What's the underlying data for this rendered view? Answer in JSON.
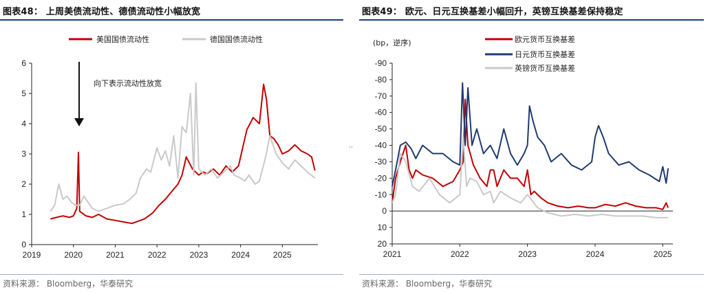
{
  "left": {
    "title": "图表48：  上周美债流动性、德债流动性小幅放宽",
    "source": "资料来源：  Bloomberg，华泰研究",
    "chart_data": {
      "type": "line",
      "title": "上周美债流动性、德债流动性小幅放宽",
      "xlabel": "",
      "ylabel": "",
      "ylim": [
        0,
        6
      ],
      "yticks": [
        "0",
        "1",
        "2",
        "3",
        "4",
        "5",
        "6"
      ],
      "xticks": [
        "2019",
        "2020",
        "2021",
        "2022",
        "2023",
        "2024",
        "2025"
      ],
      "xtick_values": [
        2019,
        2020,
        2021,
        2022,
        2023,
        2024,
        2025
      ],
      "xlim": [
        2019,
        2025.85
      ],
      "annotation": "向下表示流动性放宽",
      "series": [
        {
          "name": "美国国债流动性",
          "color": "#c00000",
          "x": [
            2019.45,
            2019.6,
            2019.75,
            2019.9,
            2020.0,
            2020.08,
            2020.12,
            2020.15,
            2020.2,
            2020.3,
            2020.45,
            2020.6,
            2020.8,
            2021.0,
            2021.2,
            2021.4,
            2021.6,
            2021.7,
            2021.9,
            2022.05,
            2022.2,
            2022.35,
            2022.5,
            2022.6,
            2022.7,
            2022.85,
            2023.0,
            2023.1,
            2023.2,
            2023.35,
            2023.5,
            2023.65,
            2023.8,
            2023.95,
            2024.05,
            2024.15,
            2024.3,
            2024.45,
            2024.55,
            2024.62,
            2024.7,
            2024.8,
            2024.9,
            2025.0,
            2025.15,
            2025.3,
            2025.45,
            2025.6,
            2025.7,
            2025.78
          ],
          "values": [
            0.85,
            0.9,
            0.95,
            0.9,
            0.95,
            1.2,
            3.05,
            1.1,
            1.05,
            0.95,
            0.9,
            1.0,
            0.85,
            0.8,
            0.75,
            0.7,
            0.8,
            0.85,
            1.05,
            1.3,
            1.5,
            1.75,
            2.0,
            2.3,
            2.9,
            2.5,
            2.3,
            2.4,
            2.35,
            2.5,
            2.3,
            2.6,
            2.4,
            2.6,
            3.2,
            3.8,
            4.2,
            4.0,
            5.3,
            4.8,
            3.6,
            3.5,
            3.3,
            3.0,
            3.1,
            3.3,
            3.1,
            3.0,
            2.9,
            2.45
          ]
        },
        {
          "name": "德国国债流动性",
          "color": "#c9c9c9",
          "x": [
            2019.45,
            2019.55,
            2019.65,
            2019.75,
            2019.85,
            2019.95,
            2020.05,
            2020.15,
            2020.25,
            2020.35,
            2020.45,
            2020.6,
            2020.8,
            2021.0,
            2021.2,
            2021.35,
            2021.5,
            2021.6,
            2021.75,
            2021.85,
            2022.0,
            2022.1,
            2022.2,
            2022.3,
            2022.4,
            2022.5,
            2022.6,
            2022.7,
            2022.8,
            2022.88,
            2022.93,
            2023.0,
            2023.15,
            2023.3,
            2023.45,
            2023.6,
            2023.75,
            2023.85,
            2024.0,
            2024.1,
            2024.2,
            2024.35,
            2024.45,
            2024.6,
            2024.7,
            2024.85,
            2025.0,
            2025.15,
            2025.3,
            2025.45,
            2025.6,
            2025.78
          ],
          "values": [
            1.1,
            1.3,
            2.0,
            1.5,
            1.6,
            1.4,
            1.3,
            1.3,
            1.6,
            1.4,
            1.2,
            1.1,
            1.2,
            1.3,
            1.35,
            1.5,
            1.7,
            2.2,
            2.5,
            2.4,
            3.2,
            2.8,
            3.1,
            2.6,
            3.6,
            2.2,
            3.9,
            3.7,
            5.0,
            2.3,
            5.35,
            2.5,
            2.3,
            2.5,
            2.2,
            2.4,
            2.6,
            2.3,
            2.2,
            2.1,
            2.3,
            2.0,
            2.1,
            2.9,
            3.6,
            3.0,
            2.7,
            2.5,
            2.8,
            2.6,
            2.4,
            2.2
          ]
        }
      ]
    }
  },
  "right": {
    "title": "图表49：  欧元、日元互换基差小幅回升，英镑互换基差保持稳定",
    "source": "资料来源：  Bloomberg，华泰研究",
    "chart_data": {
      "type": "line",
      "title": "欧元、日元互换基差小幅回升，英镑互换基差保持稳定",
      "xlabel": "",
      "ylabel": "(bp，逆序)",
      "ylim": [
        20,
        -90
      ],
      "yticks": [
        "-90",
        "-80",
        "-70",
        "-60",
        "-50",
        "-40",
        "-30",
        "-20",
        "-10",
        "0",
        "10",
        "20"
      ],
      "xticks": [
        "2021",
        "2022",
        "2023",
        "2024",
        "2025"
      ],
      "xtick_values": [
        2021,
        2022,
        2023,
        2024,
        2025
      ],
      "xlim": [
        2021,
        2025.15
      ],
      "series": [
        {
          "name": "欧元货币互换基差",
          "color": "#c00000",
          "x": [
            2021.0,
            2021.05,
            2021.12,
            2021.2,
            2021.25,
            2021.3,
            2021.35,
            2021.45,
            2021.6,
            2021.75,
            2021.9,
            2022.0,
            2022.05,
            2022.08,
            2022.12,
            2022.2,
            2022.3,
            2022.4,
            2022.45,
            2022.5,
            2022.55,
            2022.65,
            2022.75,
            2022.85,
            2022.95,
            2023.0,
            2023.05,
            2023.1,
            2023.2,
            2023.3,
            2023.45,
            2023.6,
            2023.75,
            2023.9,
            2024.0,
            2024.15,
            2024.3,
            2024.45,
            2024.6,
            2024.75,
            2024.9,
            2025.0,
            2025.05,
            2025.08
          ],
          "values": [
            -5,
            -20,
            -30,
            -40,
            -25,
            -20,
            -25,
            -22,
            -20,
            -15,
            -18,
            -25,
            -30,
            -68,
            -40,
            -28,
            -20,
            -15,
            -25,
            -25,
            -15,
            -25,
            -20,
            -20,
            -15,
            -25,
            -10,
            -12,
            -8,
            -5,
            -3,
            -2,
            -3,
            -2,
            -2,
            -4,
            -3,
            -5,
            -3,
            -2,
            -2,
            -1,
            -5,
            -2
          ]
        },
        {
          "name": "日元货币互换基差",
          "color": "#1f3a70",
          "x": [
            2021.0,
            2021.05,
            2021.12,
            2021.2,
            2021.28,
            2021.35,
            2021.45,
            2021.6,
            2021.75,
            2021.9,
            2022.0,
            2022.04,
            2022.08,
            2022.12,
            2022.18,
            2022.25,
            2022.35,
            2022.45,
            2022.55,
            2022.65,
            2022.75,
            2022.85,
            2022.95,
            2023.0,
            2023.03,
            2023.08,
            2023.15,
            2023.25,
            2023.35,
            2023.5,
            2023.65,
            2023.8,
            2023.95,
            2024.0,
            2024.05,
            2024.12,
            2024.2,
            2024.35,
            2024.5,
            2024.65,
            2024.8,
            2024.95,
            2025.0,
            2025.05,
            2025.08
          ],
          "values": [
            -15,
            -25,
            -40,
            -42,
            -38,
            -32,
            -40,
            -35,
            -35,
            -30,
            -28,
            -78,
            -40,
            -75,
            -40,
            -50,
            -35,
            -40,
            -32,
            -50,
            -35,
            -28,
            -35,
            -40,
            -64,
            -55,
            -45,
            -40,
            -30,
            -35,
            -28,
            -25,
            -30,
            -45,
            -52,
            -45,
            -35,
            -28,
            -30,
            -25,
            -22,
            -18,
            -27,
            -17,
            -26
          ]
        },
        {
          "name": "英镑货币互换基差",
          "color": "#c9c9c9",
          "x": [
            2021.0,
            2021.05,
            2021.12,
            2021.2,
            2021.3,
            2021.4,
            2021.55,
            2021.7,
            2021.85,
            2022.0,
            2022.05,
            2022.1,
            2022.15,
            2022.25,
            2022.35,
            2022.45,
            2022.5,
            2022.6,
            2022.75,
            2022.9,
            2023.0,
            2023.15,
            2023.3,
            2023.5,
            2023.7,
            2023.9,
            2024.1,
            2024.3,
            2024.5,
            2024.7,
            2024.9,
            2025.0,
            2025.08
          ],
          "values": [
            -5,
            -10,
            -35,
            -30,
            -15,
            -12,
            -20,
            -10,
            -5,
            -10,
            -45,
            -15,
            -20,
            -18,
            -10,
            -12,
            -5,
            -12,
            -8,
            -5,
            -10,
            -2,
            1,
            3,
            2,
            3,
            2,
            3,
            3,
            3,
            4,
            4,
            4
          ]
        }
      ]
    }
  }
}
